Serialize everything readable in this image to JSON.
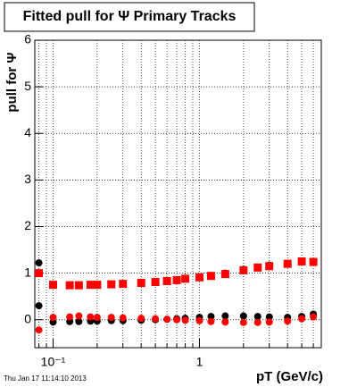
{
  "chart_data": {
    "type": "scatter",
    "title": "Fitted pull for Ψ  Primary Tracks",
    "y_label": "pull for Ψ",
    "x_label": "pT (GeV/c)",
    "timestamp": "Thu Jan 17 11:14:10 2013",
    "log_x": true,
    "grid": true,
    "xlim": [
      0.075,
      6.8
    ],
    "xticks": [
      {
        "value": 0.1,
        "label": "10⁻¹"
      },
      1
    ],
    "xminorticks": [
      0.08,
      0.09,
      0.2,
      0.3,
      0.4,
      0.5,
      0.6,
      0.7,
      0.8,
      0.9,
      2,
      3,
      4,
      5,
      6
    ],
    "ylim": [
      -0.6,
      6
    ],
    "yticks": [
      0,
      1,
      2,
      3,
      4,
      5,
      6
    ],
    "x": [
      0.08,
      0.1,
      0.13,
      0.15,
      0.18,
      0.2,
      0.25,
      0.3,
      0.4,
      0.5,
      0.6,
      0.7,
      0.8,
      1,
      1.2,
      1.5,
      2,
      2.5,
      3,
      4,
      5,
      6
    ],
    "series": [
      {
        "color": "#000000",
        "marker": "circle",
        "values": [
          1.22,
          0.75,
          0.74,
          0.74,
          0.75,
          0.75,
          0.76,
          0.77,
          0.79,
          0.81,
          0.83,
          0.86,
          0.88,
          0.92,
          0.95,
          1.0,
          1.08,
          1.13,
          1.17,
          1.21,
          1.24,
          1.25
        ]
      },
      {
        "color": "#000000",
        "marker": "circle",
        "values": [
          0.3,
          -0.05,
          -0.04,
          -0.04,
          -0.03,
          -0.03,
          -0.02,
          -0.02,
          -0.01,
          0.0,
          0.01,
          0.02,
          0.03,
          0.05,
          0.07,
          0.08,
          0.08,
          0.07,
          0.06,
          0.05,
          0.07,
          0.12
        ]
      },
      {
        "color": "#ff0000",
        "marker": "square",
        "values": [
          1.0,
          0.75,
          0.74,
          0.74,
          0.75,
          0.75,
          0.76,
          0.77,
          0.79,
          0.81,
          0.83,
          0.85,
          0.88,
          0.91,
          0.94,
          0.98,
          1.06,
          1.12,
          1.15,
          1.2,
          1.25,
          1.24
        ]
      },
      {
        "color": "#ff0000",
        "marker": "circle",
        "values": [
          -0.22,
          0.05,
          0.06,
          0.08,
          0.06,
          0.05,
          0.05,
          0.04,
          0.03,
          0.02,
          0.01,
          0.0,
          -0.01,
          -0.02,
          -0.04,
          -0.05,
          -0.06,
          -0.06,
          -0.05,
          -0.03,
          0.02,
          0.06
        ]
      }
    ]
  }
}
